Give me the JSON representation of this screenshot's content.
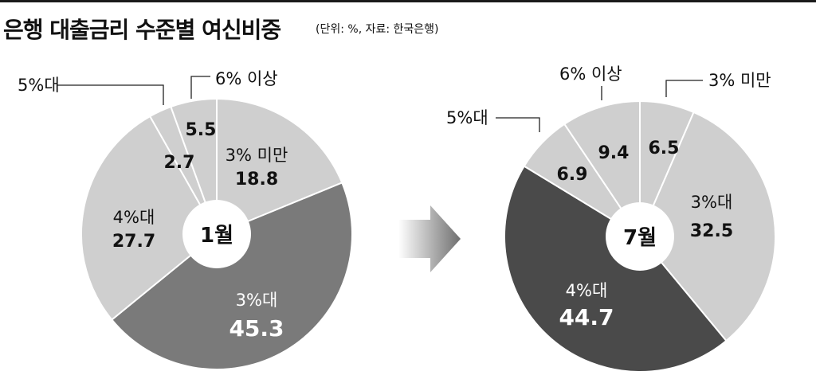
{
  "header": {
    "title": "은행 대출금리 수준별 여신비중",
    "subtitle": "(단위: %, 자료: 한국은행)"
  },
  "colors": {
    "light": "#cfcfcf",
    "medium": "#7a7a7a",
    "dark": "#4a4a4a",
    "background": "#ffffff",
    "text": "#111111"
  },
  "chart_data": [
    {
      "type": "pie",
      "title": "1월",
      "series": [
        {
          "name": "3% 미만",
          "value": 18.8
        },
        {
          "name": "3%대",
          "value": 45.3
        },
        {
          "name": "4%대",
          "value": 27.7
        },
        {
          "name": "5%대",
          "value": 2.7
        },
        {
          "name": "6% 이상",
          "value": 5.5
        }
      ],
      "value_labels": [
        "18.8",
        "45.3",
        "27.7",
        "2.7",
        "5.5"
      ]
    },
    {
      "type": "pie",
      "title": "7월",
      "series": [
        {
          "name": "3% 미만",
          "value": 6.5
        },
        {
          "name": "3%대",
          "value": 32.5
        },
        {
          "name": "4%대",
          "value": 44.7
        },
        {
          "name": "5%대",
          "value": 6.9
        },
        {
          "name": "6% 이상",
          "value": 9.4
        }
      ],
      "value_labels": [
        "6.5",
        "32.5",
        "44.7",
        "6.9",
        "9.4"
      ]
    }
  ]
}
